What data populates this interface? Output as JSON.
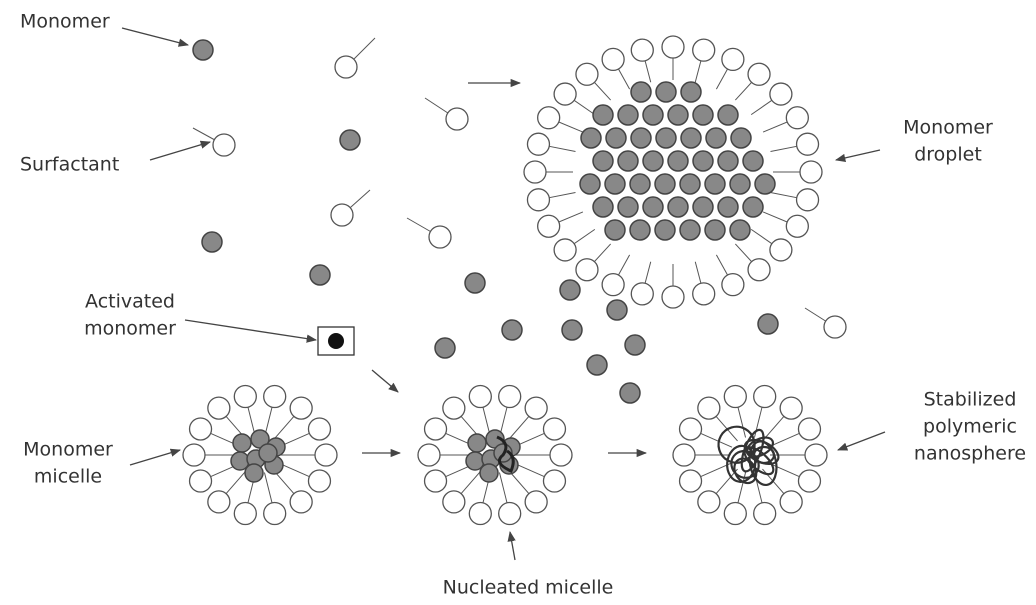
{
  "labels": {
    "monomer": [
      "Monomer"
    ],
    "surfactant": [
      "Surfactant"
    ],
    "monomer_droplet": [
      "Monomer",
      "droplet"
    ],
    "activated_monomer": [
      "Activated",
      "monomer"
    ],
    "monomer_micelle": [
      "Monomer",
      "micelle"
    ],
    "nucleated_micelle": [
      "Nucleated micelle"
    ],
    "stabilized_nanosphere": [
      "Stabilized",
      "polymeric",
      "nanosphere"
    ]
  }
}
